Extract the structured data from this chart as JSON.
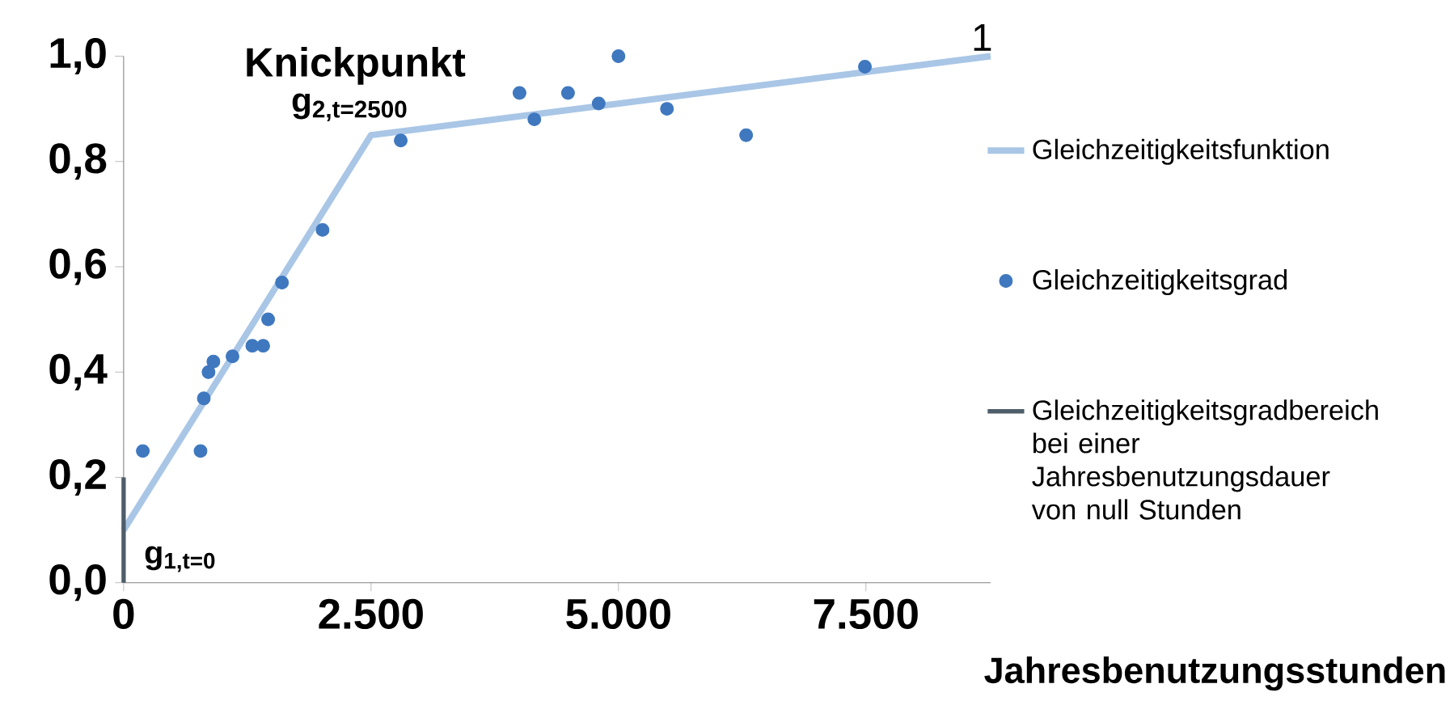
{
  "chart_data": {
    "type": "line",
    "xlabel": "Jahresbenutzungsstunden",
    "xlim": [
      0,
      8760
    ],
    "ylim": [
      0,
      1.0
    ],
    "xticks": [
      0,
      {
        "value": 2500,
        "label": "2.500"
      },
      {
        "value": 5000,
        "label": "5.000"
      },
      {
        "value": 7500,
        "label": "7.500"
      }
    ],
    "yticks": [
      {
        "value": 0,
        "label": "0,0"
      },
      {
        "value": 0.2,
        "label": "0,2"
      },
      {
        "value": 0.4,
        "label": "0,4"
      },
      {
        "value": 0.6,
        "label": "0,6"
      },
      {
        "value": 0.8,
        "label": "0,8"
      },
      {
        "value": 1.0,
        "label": "1,0"
      }
    ],
    "grid": false,
    "legend": "right",
    "series": [
      {
        "name": "Gleichzeitigkeitsfunktion",
        "color": "#a9c6e6",
        "x": [
          0,
          2500,
          8760
        ],
        "values": [
          0.1,
          0.85,
          1.0
        ]
      },
      {
        "name": "Gleichzeitigkeitsgrad",
        "type": "scatter",
        "marker": "circle",
        "color": "#3f78bf",
        "x": [
          194,
          777,
          810,
          858,
          907,
          1100,
          1300,
          1410,
          1460,
          1600,
          2010,
          2800,
          4000,
          4150,
          4490,
          4800,
          5000,
          5490,
          6290,
          7490
        ],
        "values": [
          0.25,
          0.25,
          0.35,
          0.4,
          0.42,
          0.43,
          0.45,
          0.45,
          0.5,
          0.57,
          0.67,
          0.84,
          0.93,
          0.88,
          0.93,
          0.91,
          1.0,
          0.9,
          0.85,
          0.98
        ]
      },
      {
        "name": "Gleichzeitigkeitsgradbereich bei einer Jahresbenutzungsdauer von null Stunden",
        "color": "#4e5d6a",
        "x": [
          0,
          0
        ],
        "values": [
          0,
          0.2
        ]
      }
    ],
    "annotations": [
      {
        "text": "Knickpunkt",
        "x": 2500,
        "y": 0.85
      },
      {
        "text": "g$_{2,t=2500}$",
        "x": 2500,
        "y": 0.85
      },
      {
        "text": "g$_{1,t=0}$",
        "x": 0,
        "y": 0.1
      },
      {
        "text": "1",
        "x": 8760,
        "y": 1.0
      }
    ]
  }
}
